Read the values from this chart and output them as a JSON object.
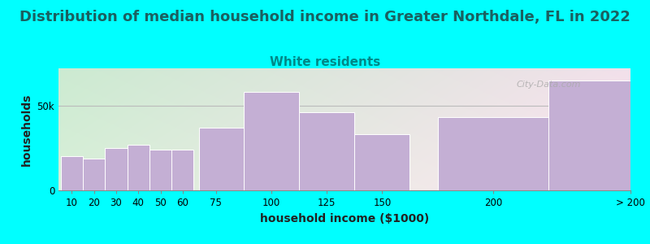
{
  "title": "Distribution of median household income in Greater Northdale, FL in 2022",
  "subtitle": "White residents",
  "xlabel": "household income ($1000)",
  "ylabel": "households",
  "background_outer": "#00FFFF",
  "background_inner_left": "#d8f0d0",
  "background_inner_right": "#e8e8f8",
  "bar_color": "#c4afd4",
  "bar_edge_color": "#ffffff",
  "title_color": "#1a6060",
  "subtitle_color": "#008888",
  "categories": [
    "10",
    "20",
    "30",
    "40",
    "50",
    "60",
    "75",
    "100",
    "125",
    "150",
    "200",
    "> 200"
  ],
  "values": [
    20000,
    18500,
    25000,
    27000,
    24000,
    24000,
    37000,
    58000,
    46000,
    33000,
    43000,
    65000
  ],
  "bar_lefts": [
    5,
    15,
    25,
    35,
    45,
    55,
    67.5,
    87.5,
    112.5,
    137.5,
    175,
    225
  ],
  "bar_widths": [
    10,
    10,
    10,
    10,
    10,
    10,
    22,
    25,
    25,
    25,
    50,
    75
  ],
  "xlim_left": 4,
  "xlim_right": 262,
  "ytick_label": "50k",
  "ytick_value": 50000,
  "ymax": 72000,
  "title_fontsize": 13,
  "subtitle_fontsize": 11,
  "axis_label_fontsize": 10,
  "tick_fontsize": 8.5,
  "watermark_text": "City-Data.com",
  "watermark_color": "#aaaaaa",
  "xtick_positions": [
    10,
    20,
    30,
    40,
    50,
    60,
    75,
    100,
    125,
    150,
    200,
    262
  ],
  "xtick_labels": [
    "10",
    "20",
    "30",
    "40",
    "50",
    "60",
    "75",
    "100",
    "125",
    "150",
    "200",
    "> 200"
  ]
}
